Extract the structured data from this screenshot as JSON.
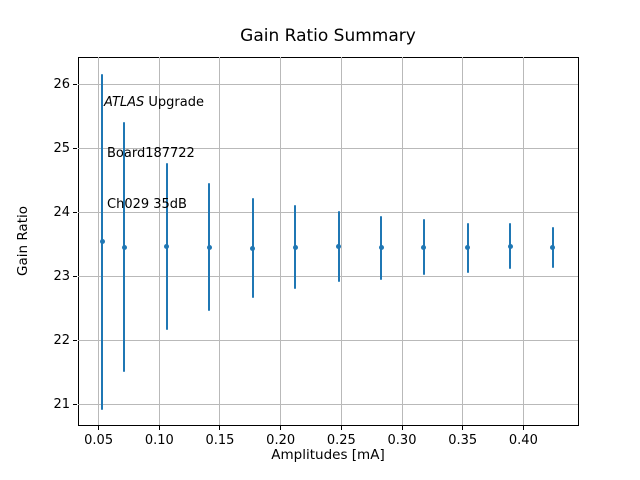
{
  "chart_data": {
    "type": "scatter",
    "subtype": "errorbar",
    "title": "Gain Ratio Summary",
    "xlabel": "Amplitudes [mA]",
    "ylabel": "Gain Ratio",
    "x": [
      0.053,
      0.071,
      0.106,
      0.141,
      0.177,
      0.212,
      0.248,
      0.283,
      0.318,
      0.354,
      0.389,
      0.424
    ],
    "y": [
      23.54,
      23.46,
      23.47,
      23.46,
      23.44,
      23.46,
      23.47,
      23.45,
      23.46,
      23.45,
      23.47,
      23.46
    ],
    "yerr": [
      2.62,
      1.95,
      1.3,
      1.0,
      0.78,
      0.65,
      0.55,
      0.5,
      0.44,
      0.39,
      0.36,
      0.32
    ],
    "xticks": [
      {
        "v": 0.05,
        "label": "0.05"
      },
      {
        "v": 0.1,
        "label": "0.10"
      },
      {
        "v": 0.15,
        "label": "0.15"
      },
      {
        "v": 0.2,
        "label": "0.20"
      },
      {
        "v": 0.25,
        "label": "0.25"
      },
      {
        "v": 0.3,
        "label": "0.30"
      },
      {
        "v": 0.35,
        "label": "0.35"
      },
      {
        "v": 0.4,
        "label": "0.40"
      }
    ],
    "yticks": [
      {
        "v": 21,
        "label": "21"
      },
      {
        "v": 22,
        "label": "22"
      },
      {
        "v": 23,
        "label": "23"
      },
      {
        "v": 24,
        "label": "24"
      },
      {
        "v": 25,
        "label": "25"
      },
      {
        "v": 26,
        "label": "26"
      }
    ],
    "xlim": [
      0.033,
      0.445
    ],
    "ylim": [
      20.68,
      26.43
    ],
    "grid": true,
    "legend": "none",
    "series_color": "#1f77b4",
    "grid_color": "#b9b9b9",
    "annotation": {
      "line1_italic": "ATLAS",
      "line1_rest": " Upgrade",
      "line2": "Board187722",
      "line3": "Ch029 35dB"
    }
  }
}
